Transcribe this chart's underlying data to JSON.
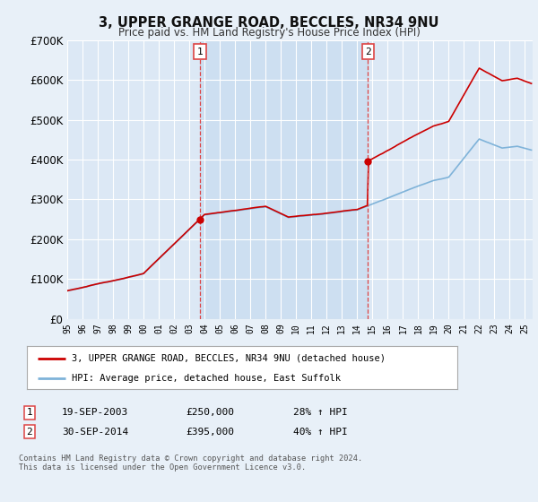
{
  "title1": "3, UPPER GRANGE ROAD, BECCLES, NR34 9NU",
  "title2": "Price paid vs. HM Land Registry's House Price Index (HPI)",
  "background_color": "#e8f0f8",
  "plot_bg_color": "#dce8f5",
  "shade_color": "#c8dcf0",
  "grid_color": "#ffffff",
  "sale1_price": 250000,
  "sale1_label": "1",
  "sale1_text": "19-SEP-2003",
  "sale1_pct": "28% ↑ HPI",
  "sale2_price": 395000,
  "sale2_label": "2",
  "sale2_text": "30-SEP-2014",
  "sale2_pct": "40% ↑ HPI",
  "legend_line1": "3, UPPER GRANGE ROAD, BECCLES, NR34 9NU (detached house)",
  "legend_line2": "HPI: Average price, detached house, East Suffolk",
  "footer": "Contains HM Land Registry data © Crown copyright and database right 2024.\nThis data is licensed under the Open Government Licence v3.0.",
  "hpi_color": "#7fb3d9",
  "price_color": "#cc0000",
  "vline_color": "#dd4444",
  "xstart": 1995.0,
  "xend": 2025.5,
  "ylim_max": 700000
}
